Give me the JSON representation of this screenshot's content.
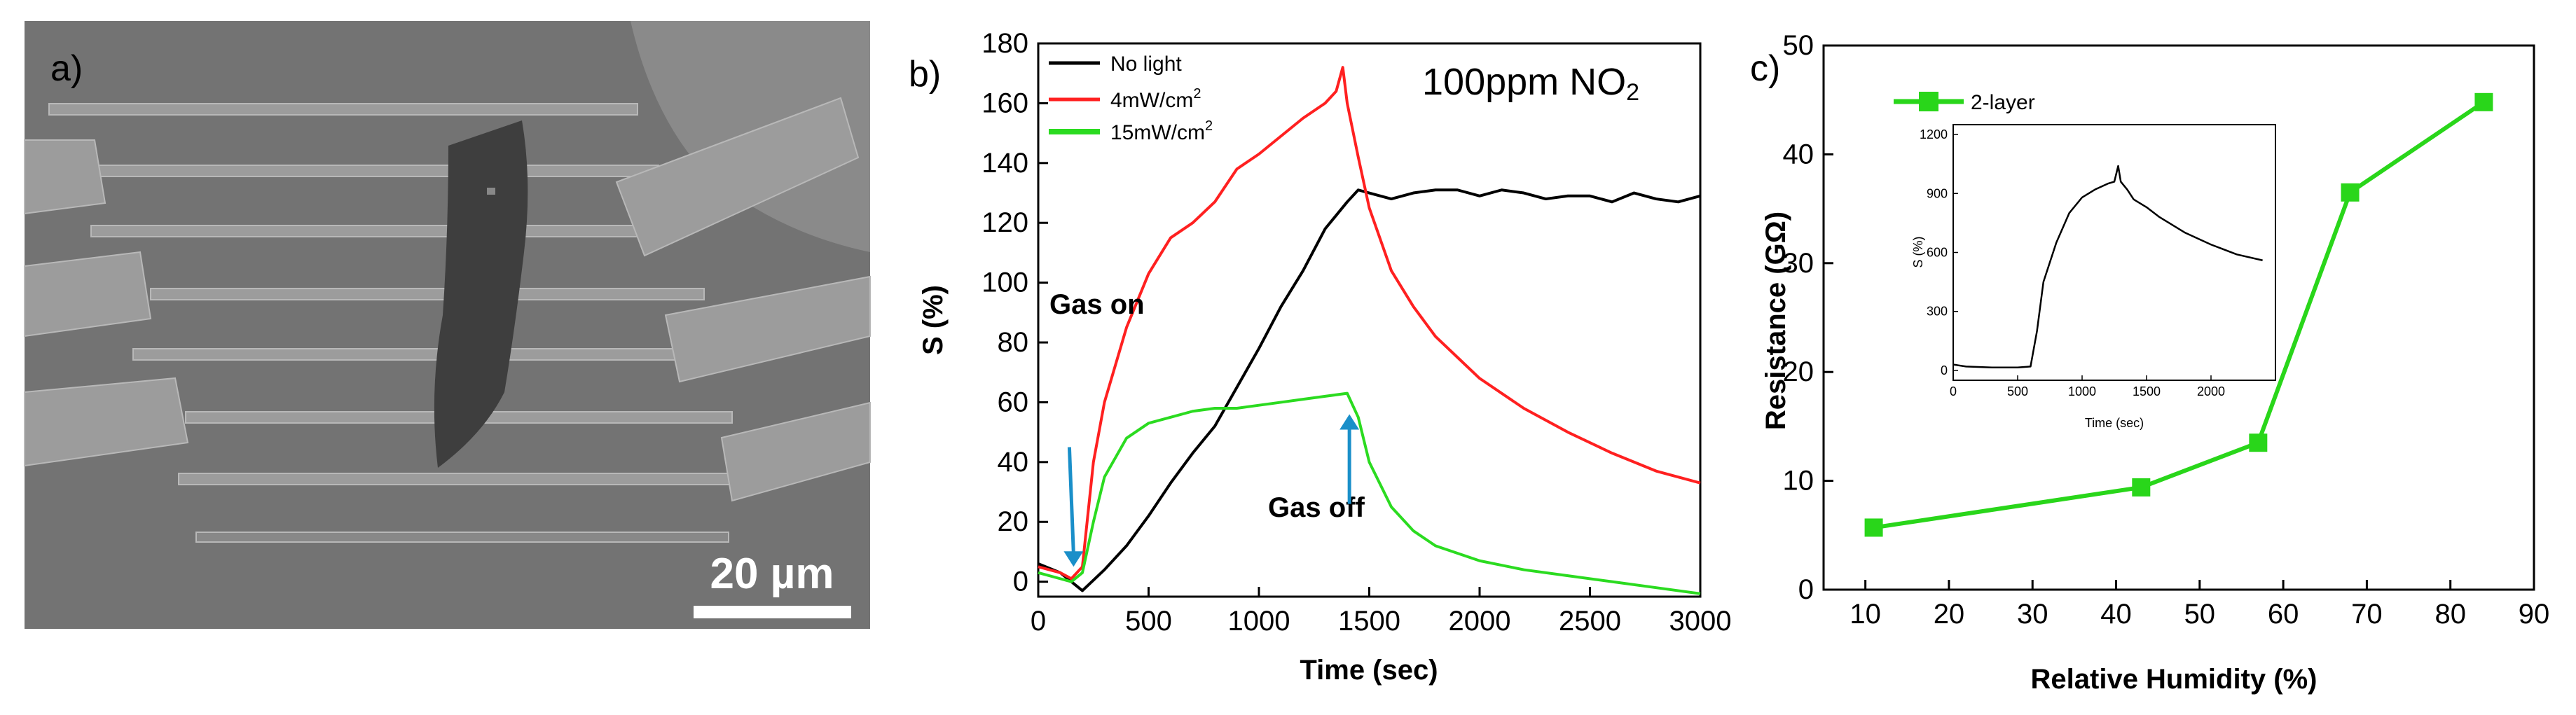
{
  "panels": {
    "a": {
      "label": "a)",
      "scale_bar": "20 µm",
      "colors": {
        "background": "#737373",
        "electrode": "#9c9c9c",
        "flake": "#3e3e3e",
        "scale": "#ffffff"
      }
    },
    "b": {
      "label": "b)"
    },
    "c": {
      "label": "c)"
    }
  },
  "chart_data": [
    {
      "id": "b",
      "type": "line",
      "title": "100ppm NO₂",
      "title_main": "100ppm NO",
      "title_sub": "2",
      "xlabel": "Time (sec)",
      "ylabel": "S (%)",
      "xlim": [
        0,
        3000
      ],
      "ylim": [
        -5,
        180
      ],
      "xticks": [
        "0",
        "500",
        "1000",
        "1500",
        "2000",
        "2500",
        "3000"
      ],
      "yticks": [
        "0",
        "20",
        "40",
        "60",
        "80",
        "100",
        "120",
        "140",
        "160",
        "180"
      ],
      "legend_position": "top-left",
      "annotations": {
        "gas_on": "Gas on",
        "gas_off": "Gas off",
        "arrow_color": "#1a8fc9"
      },
      "series": [
        {
          "name": "No light",
          "legend_main": "No light",
          "legend_sup": "",
          "color": "#000000",
          "x": [
            0,
            100,
            200,
            300,
            400,
            500,
            600,
            700,
            800,
            900,
            1000,
            1100,
            1200,
            1300,
            1400,
            1450,
            1500,
            1600,
            1700,
            1800,
            1900,
            2000,
            2100,
            2200,
            2300,
            2400,
            2500,
            2600,
            2700,
            2800,
            2900,
            3000
          ],
          "values": [
            6,
            3,
            -3,
            4,
            12,
            22,
            33,
            43,
            52,
            65,
            78,
            92,
            104,
            118,
            127,
            131,
            130,
            128,
            130,
            131,
            131,
            129,
            131,
            130,
            128,
            129,
            129,
            127,
            130,
            128,
            127,
            129
          ]
        },
        {
          "name": "4mW/cm2",
          "legend_main": "4mW/cm",
          "legend_sup": "2",
          "color": "#ff2020",
          "x": [
            0,
            100,
            150,
            200,
            250,
            300,
            400,
            500,
            600,
            700,
            800,
            900,
            1000,
            1100,
            1200,
            1300,
            1350,
            1380,
            1400,
            1450,
            1500,
            1600,
            1700,
            1800,
            1900,
            2000,
            2200,
            2400,
            2600,
            2800,
            3000
          ],
          "values": [
            5,
            3,
            1,
            5,
            40,
            60,
            85,
            103,
            115,
            120,
            127,
            138,
            143,
            149,
            155,
            160,
            164,
            172,
            160,
            142,
            125,
            104,
            92,
            82,
            75,
            68,
            58,
            50,
            43,
            37,
            33
          ]
        },
        {
          "name": "15mW/cm2",
          "legend_main": "15mW/cm",
          "legend_sup": "2",
          "color": "#2bdb20",
          "x": [
            0,
            100,
            150,
            200,
            250,
            300,
            400,
            500,
            600,
            700,
            800,
            900,
            1000,
            1100,
            1200,
            1300,
            1400,
            1450,
            1500,
            1600,
            1700,
            1800,
            2000,
            2200,
            2400,
            2600,
            2800,
            3000
          ],
          "values": [
            3,
            1,
            0,
            3,
            20,
            35,
            48,
            53,
            55,
            57,
            58,
            58,
            59,
            60,
            61,
            62,
            63,
            55,
            40,
            25,
            17,
            12,
            7,
            4,
            2,
            0,
            -2,
            -4
          ]
        }
      ]
    },
    {
      "id": "c",
      "type": "line",
      "xlabel": "Relative Humidity (%)",
      "ylabel": "Resistance (GΩ)",
      "xlim": [
        5,
        90
      ],
      "ylim": [
        0,
        50
      ],
      "xticks": [
        "10",
        "20",
        "30",
        "40",
        "50",
        "60",
        "70",
        "80",
        "90"
      ],
      "yticks": [
        "0",
        "10",
        "20",
        "30",
        "40",
        "50"
      ],
      "legend_position": "top-left",
      "series": [
        {
          "name": "2-layer",
          "color": "#29d61a",
          "marker": "square",
          "x": [
            11,
            43,
            57,
            68,
            84
          ],
          "values": [
            5.7,
            9.4,
            13.5,
            36.5,
            44.8
          ]
        }
      ],
      "inset": {
        "type": "line",
        "xlabel": "Time (sec)",
        "ylabel": "S (%)",
        "xlim": [
          0,
          2500
        ],
        "ylim": [
          -50,
          1250
        ],
        "xticks": [
          "0",
          "500",
          "1000",
          "1500",
          "2000"
        ],
        "yticks": [
          "0",
          "300",
          "600",
          "900",
          "1200"
        ],
        "series": [
          {
            "name": "inset",
            "color": "#000000",
            "x": [
              0,
              100,
              300,
              500,
              600,
              650,
              700,
              800,
              900,
              1000,
              1100,
              1200,
              1250,
              1280,
              1300,
              1350,
              1400,
              1500,
              1600,
              1800,
              2000,
              2200,
              2400
            ],
            "values": [
              30,
              20,
              15,
              15,
              20,
              200,
              450,
              650,
              800,
              880,
              920,
              950,
              960,
              1040,
              960,
              920,
              870,
              830,
              780,
              700,
              640,
              590,
              560
            ]
          }
        ]
      }
    }
  ]
}
